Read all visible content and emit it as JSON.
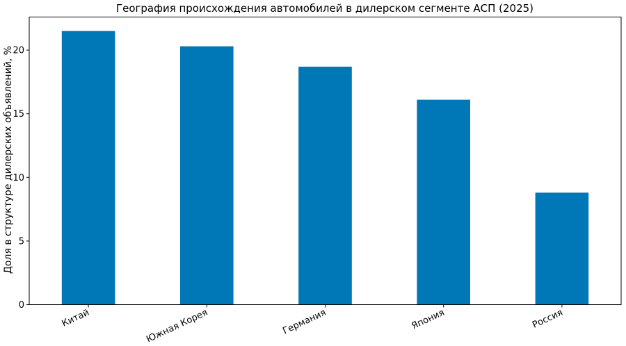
{
  "chart_data": {
    "type": "bar",
    "title": "География происхождения автомобилей в дилерском сегменте АСП (2025)",
    "xlabel": "",
    "ylabel": "Доля в структуре дилерских объявлений, %",
    "categories": [
      "Китай",
      "Южная Корея",
      "Германия",
      "Япония",
      "Россия"
    ],
    "values": [
      21.5,
      20.3,
      18.7,
      16.1,
      8.8
    ],
    "ylim": [
      0,
      22.6
    ],
    "yticks": [
      0,
      5,
      10,
      15,
      20
    ],
    "bar_color": "#0077b6",
    "grid": false,
    "legend": "none"
  }
}
